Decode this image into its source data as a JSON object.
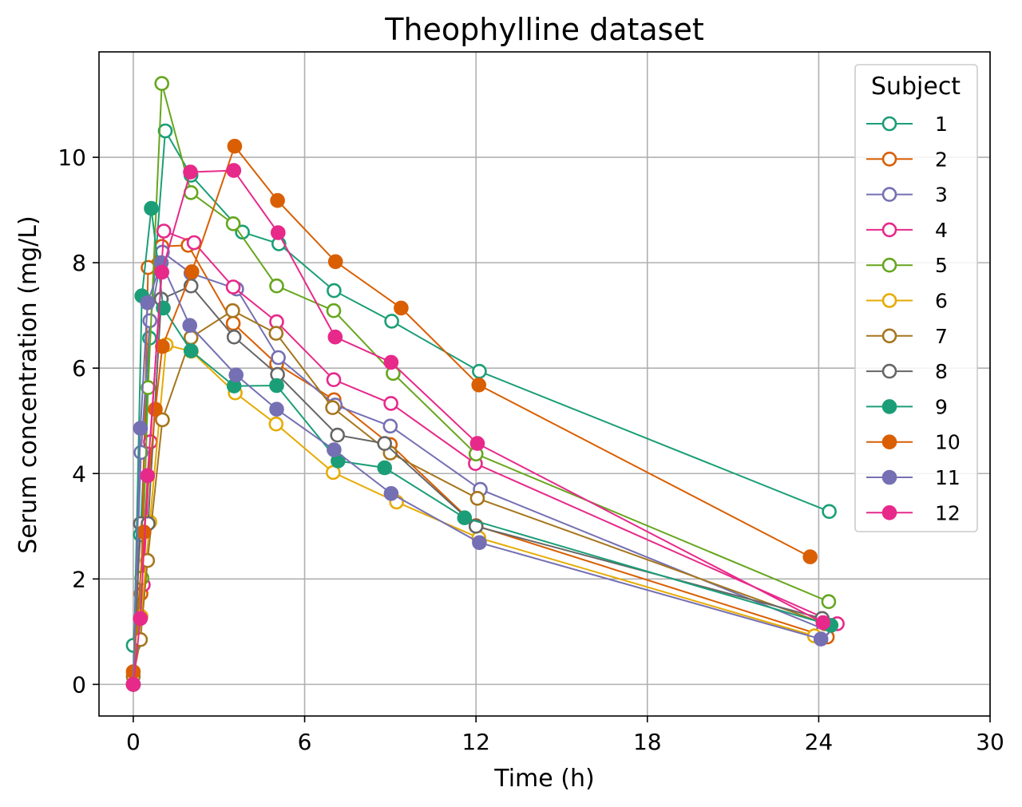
{
  "chart_data": {
    "type": "line",
    "title": "Theophylline dataset",
    "xlabel": "Time (h)",
    "ylabel": "Serum concentration (mg/L)",
    "xlim": [
      -1.2,
      30
    ],
    "ylim": [
      -0.6,
      12.0
    ],
    "xticks": [
      0,
      6,
      12,
      18,
      24,
      30
    ],
    "yticks": [
      0,
      2,
      4,
      6,
      8,
      10
    ],
    "grid": true,
    "legend": {
      "title": "Subject",
      "placement": "top-right"
    },
    "series": [
      {
        "name": "1",
        "color": "#1b9e77",
        "marker": "open",
        "x": [
          0,
          0.25,
          0.57,
          1.12,
          2.02,
          3.82,
          5.1,
          7.03,
          9.05,
          12.12,
          24.37
        ],
        "y": [
          0.74,
          2.84,
          6.57,
          10.5,
          9.66,
          8.58,
          8.36,
          7.47,
          6.89,
          5.94,
          3.28
        ]
      },
      {
        "name": "2",
        "color": "#d95f02",
        "marker": "open",
        "x": [
          0,
          0.27,
          0.52,
          1.0,
          1.92,
          3.5,
          5.02,
          7.03,
          9.0,
          12.0,
          24.3
        ],
        "y": [
          0.0,
          1.72,
          7.91,
          8.31,
          8.33,
          6.85,
          6.08,
          5.4,
          4.55,
          3.01,
          0.9
        ]
      },
      {
        "name": "3",
        "color": "#7570b3",
        "marker": "open",
        "x": [
          0,
          0.27,
          0.58,
          1.02,
          2.02,
          3.62,
          5.08,
          7.07,
          9.0,
          12.15,
          24.17
        ],
        "y": [
          0.0,
          4.4,
          6.9,
          8.2,
          7.8,
          7.5,
          6.2,
          5.3,
          4.9,
          3.7,
          1.05
        ]
      },
      {
        "name": "4",
        "color": "#e7298a",
        "marker": "open",
        "x": [
          0,
          0.35,
          0.6,
          1.07,
          2.13,
          3.5,
          5.02,
          7.02,
          9.02,
          11.98,
          24.65
        ],
        "y": [
          0.0,
          1.89,
          4.6,
          8.6,
          8.38,
          7.54,
          6.88,
          5.78,
          5.33,
          4.19,
          1.15
        ]
      },
      {
        "name": "5",
        "color": "#66a61e",
        "marker": "open",
        "x": [
          0,
          0.3,
          0.52,
          1.0,
          2.02,
          3.5,
          5.02,
          7.02,
          9.1,
          12.0,
          24.35
        ],
        "y": [
          0.0,
          2.02,
          5.63,
          11.4,
          9.33,
          8.74,
          7.56,
          7.09,
          5.9,
          4.37,
          1.57
        ]
      },
      {
        "name": "6",
        "color": "#e6ab02",
        "marker": "open",
        "x": [
          0,
          0.27,
          0.58,
          1.15,
          2.03,
          3.57,
          5.0,
          7.0,
          9.22,
          12.1,
          23.85
        ],
        "y": [
          0.0,
          1.29,
          3.08,
          6.44,
          6.32,
          5.53,
          4.94,
          4.02,
          3.46,
          2.78,
          0.92
        ]
      },
      {
        "name": "7",
        "color": "#a6761d",
        "marker": "open",
        "x": [
          0,
          0.25,
          0.5,
          1.02,
          2.02,
          3.48,
          5.0,
          6.98,
          9.0,
          12.05,
          24.22
        ],
        "y": [
          0.15,
          0.85,
          2.35,
          5.02,
          6.58,
          7.09,
          6.66,
          5.25,
          4.39,
          3.53,
          1.15
        ]
      },
      {
        "name": "8",
        "color": "#666666",
        "marker": "open",
        "x": [
          0,
          0.25,
          0.52,
          0.98,
          2.02,
          3.53,
          5.05,
          7.15,
          8.8,
          12.0,
          24.12
        ],
        "y": [
          0.0,
          3.05,
          3.05,
          7.31,
          7.56,
          6.59,
          5.88,
          4.73,
          4.57,
          3.0,
          1.25
        ]
      },
      {
        "name": "9",
        "color": "#1b9e77",
        "marker": "filled",
        "x": [
          0,
          0.3,
          0.63,
          1.05,
          2.02,
          3.53,
          5.02,
          7.17,
          8.8,
          11.6,
          24.43
        ],
        "y": [
          0.0,
          7.37,
          9.03,
          7.14,
          6.33,
          5.66,
          5.67,
          4.24,
          4.11,
          3.16,
          1.12
        ]
      },
      {
        "name": "10",
        "color": "#d95f02",
        "marker": "filled",
        "x": [
          0,
          0.37,
          0.77,
          1.02,
          2.05,
          3.55,
          5.05,
          7.08,
          9.38,
          12.1,
          23.7
        ],
        "y": [
          0.24,
          2.89,
          5.22,
          6.41,
          7.83,
          10.21,
          9.18,
          8.02,
          7.14,
          5.68,
          2.42
        ]
      },
      {
        "name": "11",
        "color": "#7570b3",
        "marker": "filled",
        "x": [
          0,
          0.25,
          0.5,
          0.98,
          1.98,
          3.6,
          5.02,
          7.03,
          9.03,
          12.12,
          24.08
        ],
        "y": [
          0.0,
          4.86,
          7.24,
          8.0,
          6.81,
          5.87,
          5.22,
          4.45,
          3.62,
          2.69,
          0.86
        ]
      },
      {
        "name": "12",
        "color": "#e7298a",
        "marker": "filled",
        "x": [
          0,
          0.25,
          0.5,
          1.0,
          2.0,
          3.52,
          5.07,
          7.07,
          9.03,
          12.05,
          24.15
        ],
        "y": [
          0.0,
          1.25,
          3.96,
          7.82,
          9.72,
          9.75,
          8.57,
          6.59,
          6.11,
          4.57,
          1.17
        ]
      }
    ]
  }
}
